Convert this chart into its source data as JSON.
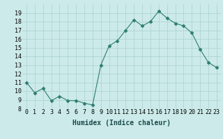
{
  "x": [
    0,
    1,
    2,
    3,
    4,
    5,
    6,
    7,
    8,
    9,
    10,
    11,
    12,
    13,
    14,
    15,
    16,
    17,
    18,
    19,
    20,
    21,
    22,
    23
  ],
  "y": [
    11.0,
    9.8,
    10.3,
    8.9,
    9.4,
    8.9,
    8.9,
    8.6,
    8.4,
    13.0,
    15.2,
    15.8,
    17.0,
    18.2,
    17.5,
    18.0,
    19.2,
    18.4,
    17.8,
    17.5,
    16.7,
    14.8,
    13.3,
    12.7
  ],
  "line_color": "#2d7d6e",
  "marker": "D",
  "marker_size": 2.5,
  "bg_color": "#cceaea",
  "grid_color": "#aad0d0",
  "xlabel": "Humidex (Indice chaleur)",
  "ylim": [
    8,
    20
  ],
  "xlim": [
    -0.5,
    23.5
  ],
  "yticks": [
    8,
    9,
    10,
    11,
    12,
    13,
    14,
    15,
    16,
    17,
    18,
    19
  ],
  "xtick_labels": [
    "0",
    "1",
    "2",
    "3",
    "4",
    "5",
    "6",
    "7",
    "8",
    "9",
    "10",
    "11",
    "12",
    "13",
    "14",
    "15",
    "16",
    "17",
    "18",
    "19",
    "20",
    "21",
    "22",
    "23"
  ],
  "label_fontsize": 7,
  "tick_fontsize": 6
}
